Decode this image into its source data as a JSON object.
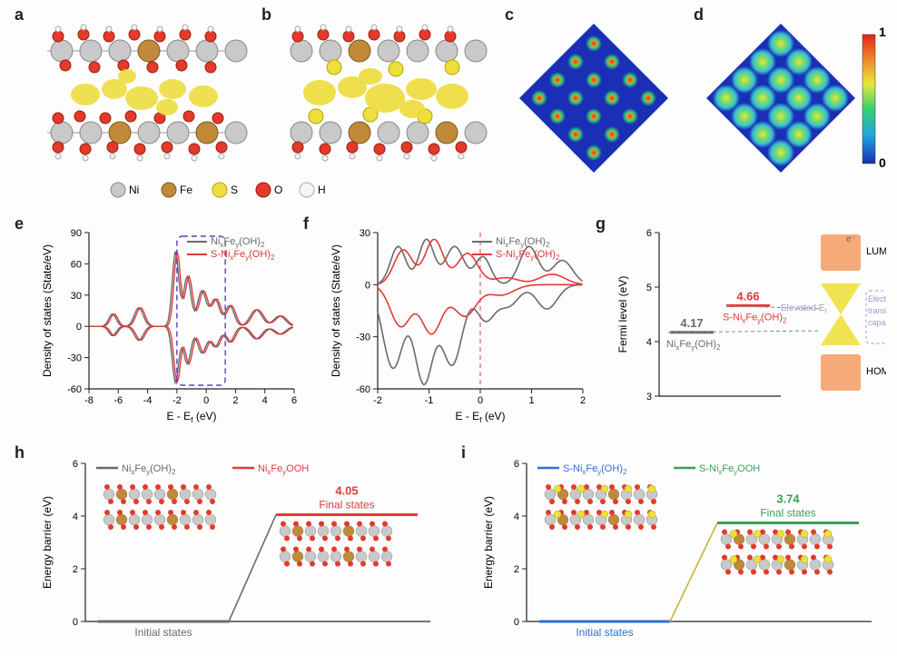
{
  "panels": {
    "a": {
      "label": "a"
    },
    "b": {
      "label": "b"
    },
    "c": {
      "label": "c"
    },
    "d": {
      "label": "d"
    },
    "e": {
      "label": "e"
    },
    "f": {
      "label": "f"
    },
    "g": {
      "label": "g"
    },
    "h": {
      "label": "h"
    },
    "i": {
      "label": "i"
    }
  },
  "atom_legend": {
    "items": [
      {
        "name": "Ni",
        "fill": "#c9c9c9",
        "stroke": "#888"
      },
      {
        "name": "Fe",
        "fill": "#c08a3a",
        "stroke": "#7a5a20"
      },
      {
        "name": "S",
        "fill": "#eee03c",
        "stroke": "#b5a400"
      },
      {
        "name": "O",
        "fill": "#e53a2a",
        "stroke": "#9b1c10"
      },
      {
        "name": "H",
        "fill": "#f5f5f5",
        "stroke": "#aaa"
      }
    ],
    "label_fontsize": 12
  },
  "colorbar": {
    "top_label": "1",
    "bottom_label": "0",
    "gradient": [
      "#1a2fb5",
      "#1fa5e0",
      "#38d070",
      "#e6e83a",
      "#f08a2a",
      "#e2261c"
    ]
  },
  "panel_e": {
    "type": "line",
    "title": null,
    "xlabel": "E - E_f (eV)",
    "ylabel": "Density of states (State/eV)",
    "xlim": [
      -8,
      6
    ],
    "xtick_step": 2,
    "ylim": [
      -60,
      90
    ],
    "ytick_step": 30,
    "series": [
      {
        "name": "Ni_xFe_y(OH)_2",
        "color": "#6b6b6b"
      },
      {
        "name": "S-Ni_xFe_y(OH)_2",
        "color": "#e23a3a"
      }
    ],
    "highlight_box": {
      "xmin": -2,
      "xmax": 1.3,
      "color": "#5a3ec0",
      "dash": "6,4"
    },
    "label_fontsize": 12,
    "tick_fontsize": 11,
    "line_width": 1.4
  },
  "panel_f": {
    "type": "line",
    "xlabel": "E - E_f (eV)",
    "ylabel": "Density of states (State/eV)",
    "xlim": [
      -2,
      2
    ],
    "xtick_step": 1,
    "ylim": [
      -60,
      30
    ],
    "ytick_step": 30,
    "series": [
      {
        "name": "Ni_xFe_y(OH)_2",
        "color": "#6b6b6b"
      },
      {
        "name": "S-Ni_xFe_y(OH)_2",
        "color": "#e23a3a"
      }
    ],
    "zero_line": {
      "color": "#e23a3a",
      "dash": "5,4"
    },
    "label_fontsize": 12,
    "tick_fontsize": 11,
    "line_width": 1.6
  },
  "panel_g": {
    "type": "level-diagram",
    "ylabel": "Fermi level (eV)",
    "ylim": [
      3,
      6
    ],
    "ytick_step": 1,
    "levels": [
      {
        "name": "Ni_xFe_y(OH)_2",
        "value": 4.17,
        "color": "#6b6b6b"
      },
      {
        "name": "S-Ni_xFe_y(OH)_2",
        "value": 4.66,
        "color": "#e23a3a"
      }
    ],
    "orbitals": {
      "lumo_label": "LUMO",
      "homo_label": "HOMO",
      "band_color": "#f4a26a",
      "cone_color": "#f0df3e",
      "annotation": "Electron transition capability",
      "annotation_color": "#9a9ad0",
      "elevated_label": "Elevated E_f",
      "elevated_color": "#9a9ad0",
      "e_minus": "e⁻"
    },
    "label_fontsize": 12,
    "tick_fontsize": 11
  },
  "panel_h": {
    "type": "energy-step",
    "xlabel": null,
    "ylabel": "Energy barrier (eV)",
    "ylim": [
      0,
      6
    ],
    "yticks": [
      0,
      2,
      4,
      6
    ],
    "legend": [
      {
        "name": "Ni_xFe_y(OH)_2",
        "color": "#6b6b6b"
      },
      {
        "name": "Ni_xFe_yOOH",
        "color": "#e23a3a"
      }
    ],
    "initial_label": "Initial states",
    "initial_color": "#6b6b6b",
    "final_label": "Final states",
    "final_color": "#e23a3a",
    "initial_value": 0,
    "final_value": 4.05,
    "connector_color": "#6b6b6b",
    "label_fontsize": 12,
    "tick_fontsize": 11
  },
  "panel_i": {
    "type": "energy-step",
    "ylabel": "Energy barrier (eV)",
    "ylim": [
      0,
      6
    ],
    "yticks": [
      0,
      2,
      4,
      6
    ],
    "legend": [
      {
        "name": "S-Ni_xFe_y(OH)_2",
        "color": "#2f6fd6"
      },
      {
        "name": "S-Ni_xFe_yOOH",
        "color": "#3aa055"
      }
    ],
    "initial_label": "Initial states",
    "initial_color": "#2f6fd6",
    "final_label": "Final states",
    "final_color": "#3aa055",
    "initial_value": 0,
    "final_value": 3.74,
    "connector_color": "#c7b23a",
    "label_fontsize": 12,
    "tick_fontsize": 11
  },
  "colors": {
    "axis": "#222",
    "background": "#fdfdfd"
  }
}
